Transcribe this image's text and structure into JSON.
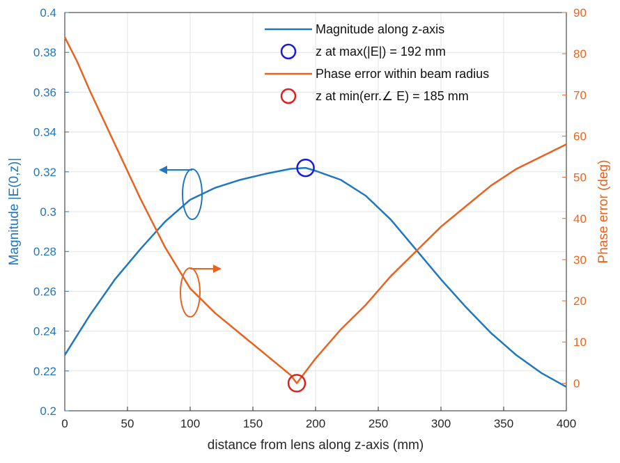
{
  "chart_data": {
    "type": "line",
    "title": "",
    "xlabel": "distance from lens along z-axis (mm)",
    "ylabel_left": "Magnitude |E(0,z)|",
    "ylabel_right": "Phase error (deg)",
    "xlim": [
      0,
      400
    ],
    "ylim_left": [
      0.2,
      0.4
    ],
    "ylim_right": [
      -6.7,
      90
    ],
    "grid": true,
    "legend_position": "top-right",
    "x_ticks": [
      "0",
      "50",
      "100",
      "150",
      "200",
      "250",
      "300",
      "350",
      "400"
    ],
    "y_left_ticks": [
      "0.2",
      "0.22",
      "0.24",
      "0.26",
      "0.28",
      "0.3",
      "0.32",
      "0.34",
      "0.36",
      "0.38",
      "0.4"
    ],
    "y_right_ticks": [
      "0",
      "10",
      "20",
      "30",
      "40",
      "50",
      "60",
      "70",
      "80",
      "90"
    ],
    "colors": {
      "magnitude": "#1f77c0",
      "phase": "#e8631f",
      "max_marker": "#1a1adb",
      "min_marker": "#e02020"
    },
    "series": [
      {
        "name": "Magnitude along z-axis",
        "axis": "left",
        "x": [
          0,
          20,
          40,
          60,
          80,
          100,
          120,
          140,
          160,
          180,
          192,
          200,
          220,
          240,
          260,
          280,
          300,
          320,
          340,
          360,
          380,
          400
        ],
        "values": [
          0.228,
          0.248,
          0.266,
          0.281,
          0.295,
          0.306,
          0.312,
          0.316,
          0.319,
          0.3215,
          0.322,
          0.3205,
          0.316,
          0.308,
          0.296,
          0.281,
          0.266,
          0.252,
          0.239,
          0.228,
          0.219,
          0.212
        ]
      },
      {
        "name": "Phase error within beam radius",
        "axis": "right",
        "x": [
          0,
          10,
          20,
          40,
          60,
          80,
          100,
          120,
          140,
          160,
          180,
          185,
          200,
          220,
          240,
          260,
          280,
          300,
          320,
          340,
          360,
          380,
          400
        ],
        "values": [
          84,
          78,
          71,
          58,
          45,
          33,
          23,
          17,
          12,
          7,
          2,
          0,
          6,
          13,
          19,
          26,
          32,
          38,
          43,
          48,
          52,
          55,
          58
        ]
      }
    ],
    "markers": [
      {
        "name": "z at max(|E|) = 192 mm",
        "axis": "left",
        "x": 192,
        "y": 0.322
      },
      {
        "name": "z at min(err.∠ E) = 185 mm",
        "axis": "right",
        "x": 185,
        "y": 0
      }
    ],
    "legend": [
      "Magnitude along z-axis",
      "z at max(|E|) = 192 mm",
      "Phase error within beam radius",
      "z at min(err.∠ E) = 185 mm"
    ]
  }
}
